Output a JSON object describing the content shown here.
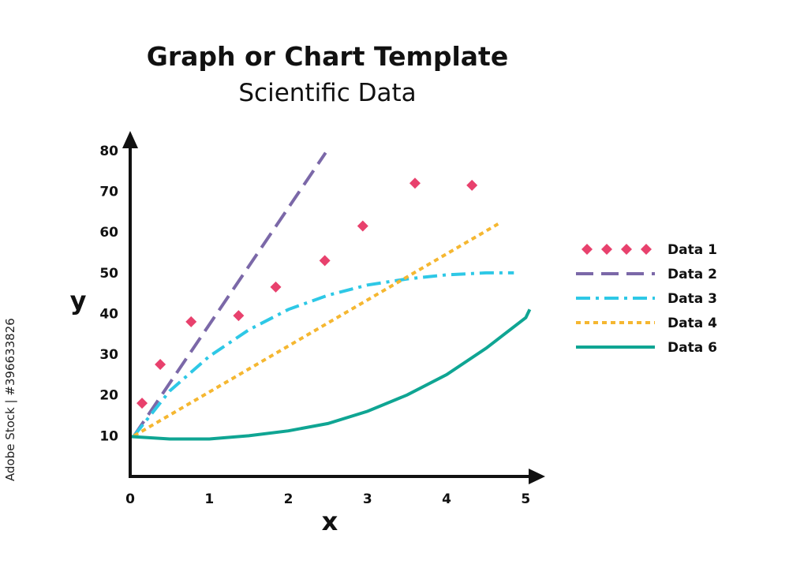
{
  "chart_data": {
    "type": "line",
    "title": "Graph or Chart Template",
    "subtitle": "Scientific Data",
    "xlabel": "x",
    "ylabel": "y",
    "xlim": [
      0,
      5.3
    ],
    "ylim": [
      0,
      86
    ],
    "x_ticks": [
      0,
      1,
      2,
      3,
      4,
      5
    ],
    "y_ticks": [
      10,
      20,
      30,
      40,
      50,
      60,
      70,
      80
    ],
    "legend_position": "right",
    "series": [
      {
        "name": "Data 1",
        "kind": "scatter",
        "color": "#e8416d",
        "points": [
          [
            0.15,
            18
          ],
          [
            0.38,
            27.5
          ],
          [
            0.77,
            38
          ],
          [
            1.37,
            39.5
          ],
          [
            1.84,
            46.5
          ],
          [
            2.46,
            53
          ],
          [
            2.94,
            61.5
          ],
          [
            3.6,
            72
          ],
          [
            4.32,
            71.5
          ]
        ]
      },
      {
        "name": "Data 2",
        "kind": "line",
        "style": "dashed",
        "color": "#7b68a8",
        "points": [
          [
            0.05,
            10
          ],
          [
            2.47,
            79.5
          ]
        ]
      },
      {
        "name": "Data 3",
        "kind": "line",
        "style": "dashdot",
        "color": "#2ec8e6",
        "points": [
          [
            0.05,
            10
          ],
          [
            0.5,
            21
          ],
          [
            1.0,
            29.5
          ],
          [
            1.5,
            36
          ],
          [
            2.0,
            41
          ],
          [
            2.5,
            44.5
          ],
          [
            3.0,
            47
          ],
          [
            3.5,
            48.5
          ],
          [
            4.0,
            49.5
          ],
          [
            4.5,
            50
          ],
          [
            4.85,
            50
          ]
        ]
      },
      {
        "name": "Data 4",
        "kind": "line",
        "style": "dotted",
        "color": "#f5b731",
        "points": [
          [
            0.05,
            10
          ],
          [
            4.65,
            62
          ]
        ]
      },
      {
        "name": "Data 6",
        "kind": "line",
        "style": "solid",
        "color": "#0fa593",
        "points": [
          [
            0.0,
            9.8
          ],
          [
            0.5,
            9.2
          ],
          [
            1.0,
            9.2
          ],
          [
            1.5,
            10
          ],
          [
            2.0,
            11.2
          ],
          [
            2.5,
            13
          ],
          [
            3.0,
            16
          ],
          [
            3.5,
            20
          ],
          [
            4.0,
            25
          ],
          [
            4.5,
            31.5
          ],
          [
            5.0,
            39
          ],
          [
            5.05,
            41
          ]
        ]
      }
    ]
  },
  "side_text": "Adobe Stock | #396633826"
}
